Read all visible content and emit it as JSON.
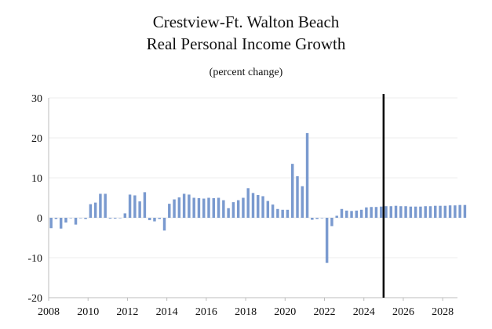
{
  "chart_data": {
    "type": "bar",
    "title": "Crestview-Ft. Walton Beach",
    "subtitle": "Real Personal Income Growth",
    "note": "(percent change)",
    "xlabel": "",
    "ylabel": "",
    "ylim": [
      -20,
      30
    ],
    "yticks": [
      30,
      20,
      10,
      0,
      -10,
      -20
    ],
    "xlim": [
      2008,
      2028.75
    ],
    "xticks": [
      2008,
      2010,
      2012,
      2014,
      2016,
      2018,
      2020,
      2022,
      2024,
      2026,
      2028
    ],
    "forecast_start": 2025,
    "bar_color": "#7a9acf",
    "divider_color": "#000000",
    "frequency": "quarterly",
    "start_year": 2008,
    "values": [
      -2.6,
      -0.3,
      -2.7,
      -1.2,
      0.0,
      -1.7,
      0.0,
      -0.3,
      3.4,
      3.8,
      6.0,
      6.0,
      -0.2,
      -0.2,
      0.0,
      1.1,
      5.8,
      5.6,
      4.1,
      6.4,
      -0.6,
      -0.9,
      -0.3,
      -3.2,
      3.5,
      4.6,
      5.1,
      6.0,
      5.8,
      5.0,
      4.9,
      4.8,
      5.0,
      4.9,
      5.0,
      4.4,
      2.4,
      3.9,
      4.4,
      5.0,
      7.4,
      6.2,
      5.7,
      5.4,
      4.2,
      3.3,
      2.2,
      2.0,
      2.0,
      13.5,
      10.4,
      7.9,
      21.2,
      -0.5,
      -0.3,
      0.0,
      -11.3,
      -2.1,
      0.5,
      2.2,
      1.8,
      1.7,
      1.8,
      2.0,
      2.6,
      2.7,
      2.7,
      2.8,
      2.9,
      2.9,
      3.0,
      2.9,
      2.9,
      2.8,
      2.8,
      2.8,
      2.9,
      2.9,
      3.0,
      3.0,
      3.0,
      3.1,
      3.1,
      3.2,
      3.2
    ]
  }
}
